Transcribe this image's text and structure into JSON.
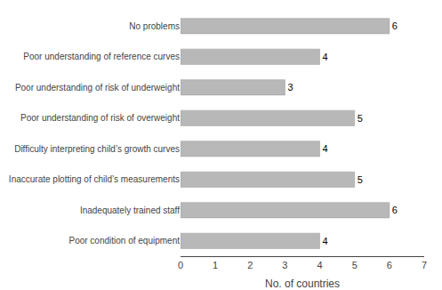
{
  "chart_data": {
    "type": "bar",
    "orientation": "horizontal",
    "xlabel": "No. of countries",
    "categories": [
      "No problems",
      "Poor understanding of reference curves",
      "Poor understanding of risk of underweight",
      "Poor understanding of risk of overweight",
      "Difficulty interpreting child’s growth curves",
      "Inaccurate plotting of child’s measurements",
      "Inadequately trained staff",
      "Poor condition of equipment"
    ],
    "values": [
      6,
      4,
      3,
      5,
      4,
      5,
      6,
      4
    ],
    "color": "#b8b8b8",
    "xlim": [
      0,
      7
    ],
    "xticks": [
      0,
      1,
      2,
      3,
      4,
      5,
      6,
      7
    ],
    "grid": false,
    "data_labels": true
  }
}
